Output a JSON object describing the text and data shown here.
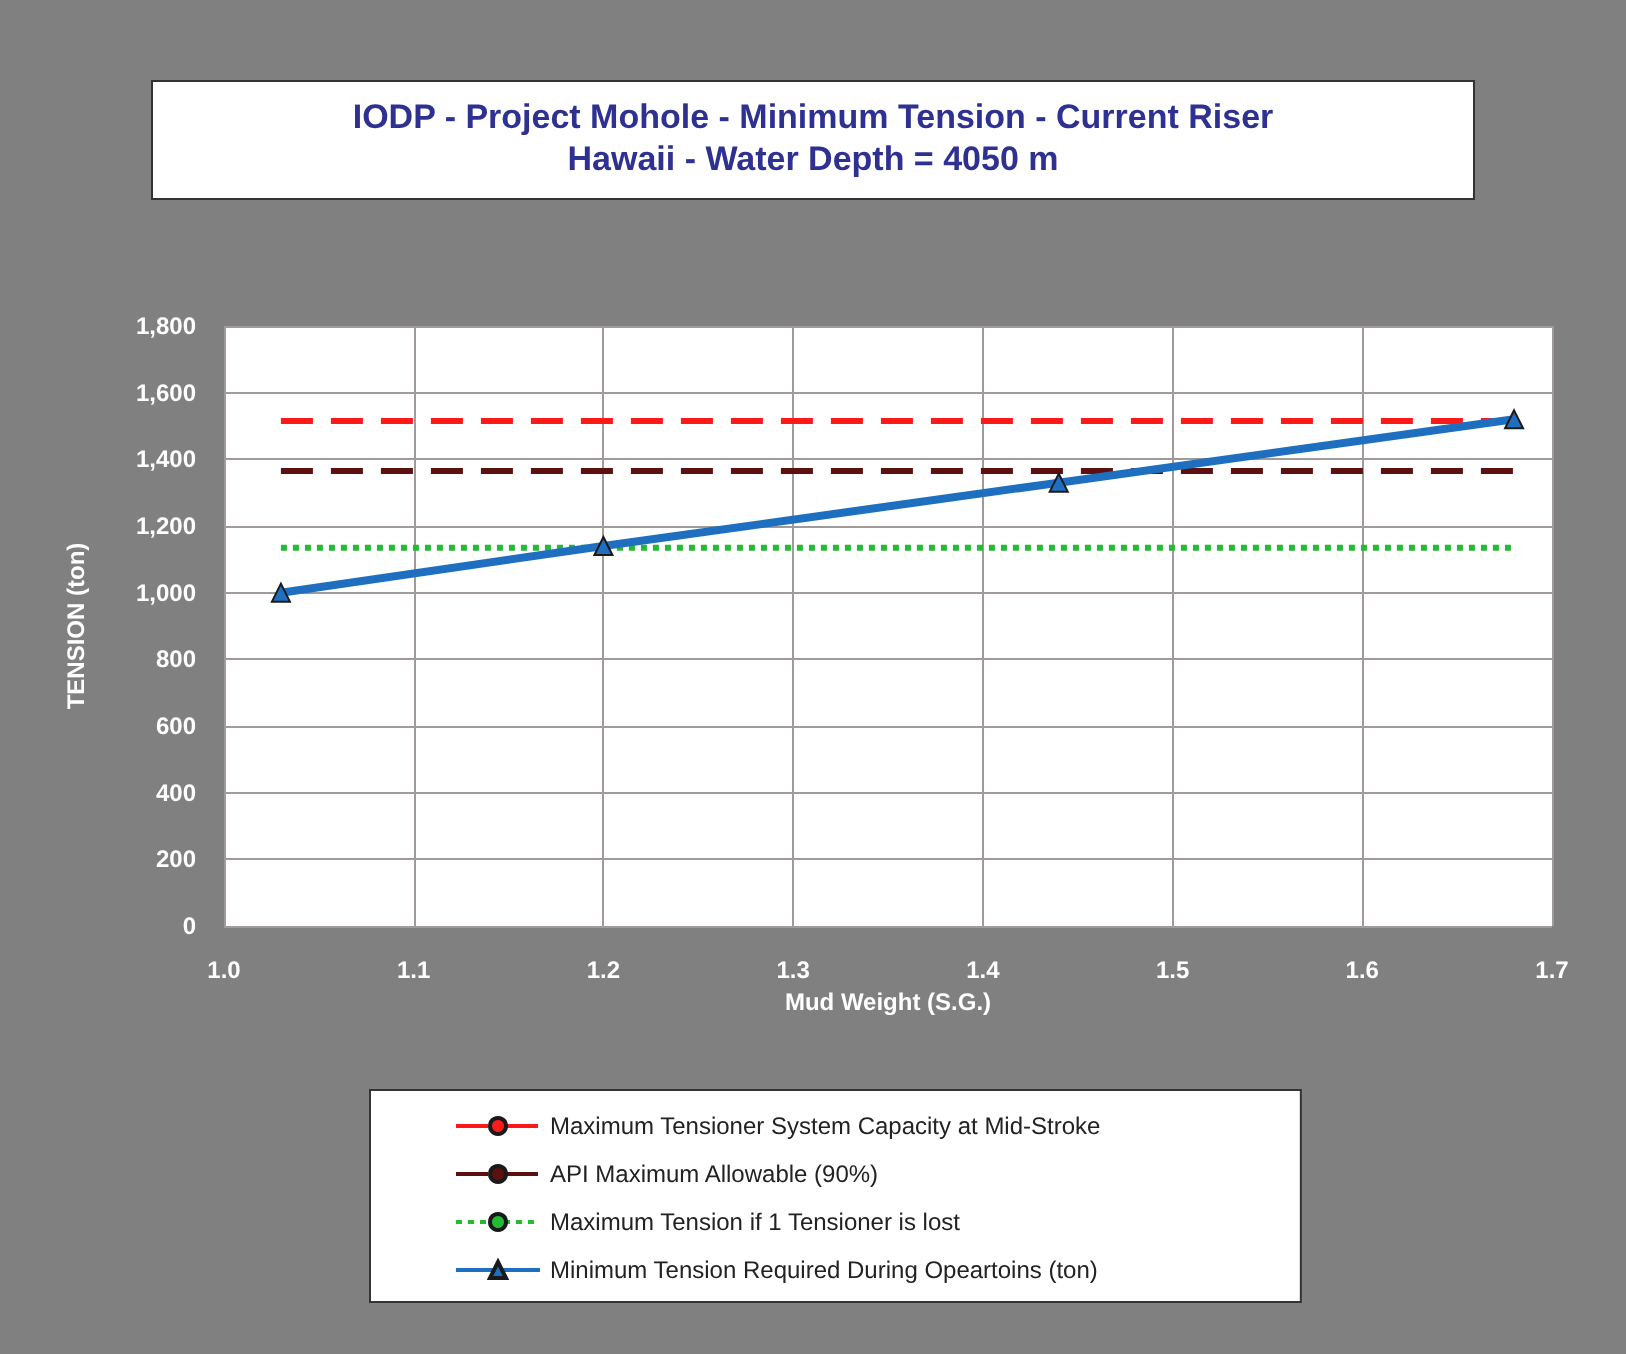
{
  "chart_data": {
    "type": "line",
    "title": "IODP - Project Mohole - Minimum Tension - Current Riser",
    "subtitle": "Hawaii - Water Depth = 4050 m",
    "xlabel": "Mud Weight (S.G.)",
    "ylabel": "TENSION (ton)",
    "series": [
      {
        "name": "Maximum Tensioner System Capacity at Mid-Stroke",
        "color": "#ff1a1a",
        "x": [
          1.03,
          1.68
        ],
        "values": [
          1515,
          1515
        ],
        "line_style": "dashed",
        "marker": "none"
      },
      {
        "name": "API Maximum Allowable (90%)",
        "color": "#5c1010",
        "x": [
          1.03,
          1.68
        ],
        "values": [
          1365,
          1365
        ],
        "line_style": "dashed",
        "marker": "none"
      },
      {
        "name": "Maximum Tension if 1 Tensioner is lost",
        "color": "#22bb33",
        "x": [
          1.03,
          1.68
        ],
        "values": [
          1135,
          1135
        ],
        "line_style": "dotted",
        "marker": "none"
      },
      {
        "name": "Minimum Tension Required During Opeartoins (ton)",
        "color": "#1f6fc0",
        "x": [
          1.03,
          1.2,
          1.44,
          1.68
        ],
        "values": [
          1000,
          1140,
          1330,
          1520
        ],
        "line_style": "solid",
        "marker": "triangle"
      }
    ],
    "xlim": [
      1.0,
      1.7
    ],
    "xticks": [
      {
        "value": 1.0,
        "label": "1.0"
      },
      1.1,
      1.2,
      1.3,
      1.4,
      1.5,
      1.6,
      1.7
    ],
    "ylim": [
      0,
      1800
    ],
    "yticks": [
      0,
      200,
      400,
      600,
      800,
      {
        "value": 1000,
        "label": "1,000"
      },
      {
        "value": 1200,
        "label": "1,200"
      },
      {
        "value": 1400,
        "label": "1,400"
      },
      {
        "value": 1600,
        "label": "1,600"
      },
      {
        "value": 1800,
        "label": "1,800"
      }
    ],
    "grid": true,
    "legend": "bottom"
  }
}
